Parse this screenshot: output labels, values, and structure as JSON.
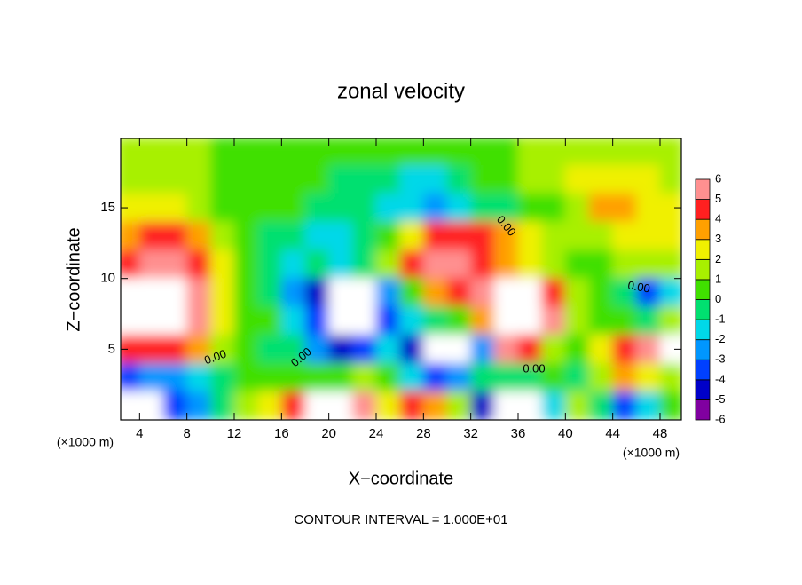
{
  "chart_data": {
    "type": "heatmap",
    "title": "zonal velocity",
    "x_label": "X−coordinate",
    "y_label": "Z−coordinate",
    "x_unit": "(×1000 m)",
    "y_unit": "(×1000 m)",
    "footnote": "CONTOUR INTERVAL = 1.000E+01",
    "annotations": [
      "0.00",
      "0.00",
      "0.00",
      "0.00",
      "0.00"
    ],
    "xlim": [
      2.4,
      49.8
    ],
    "ylim": [
      0,
      19.9
    ],
    "xticks": [
      4,
      8,
      12,
      16,
      20,
      24,
      28,
      32,
      36,
      40,
      44,
      48
    ],
    "yticks": [
      5,
      10,
      15
    ],
    "x": [
      3,
      5,
      7,
      9,
      11,
      13,
      15,
      17,
      19,
      21,
      23,
      25,
      27,
      29,
      31,
      33,
      35,
      37,
      39,
      41,
      43,
      45,
      47,
      49
    ],
    "y": [
      19,
      17,
      15,
      13,
      11,
      9,
      7,
      5,
      3,
      1
    ],
    "z": [
      [
        1,
        1,
        1,
        1,
        0.5,
        0.5,
        0.5,
        0.5,
        0.5,
        0.5,
        0.5,
        0.5,
        0.5,
        0.5,
        0.5,
        0.5,
        0.5,
        1,
        1,
        1.5,
        1.5,
        1.5,
        1,
        1
      ],
      [
        1.5,
        1.5,
        1.5,
        1,
        0.5,
        0.5,
        0.5,
        0.5,
        0.5,
        -0.5,
        -0.5,
        -1,
        -1.5,
        -1.5,
        -0.5,
        0.5,
        0.5,
        1,
        1,
        2,
        2.5,
        2.5,
        2,
        1.5
      ],
      [
        2,
        2.5,
        2.5,
        1.5,
        0.5,
        0.5,
        0.5,
        0,
        -0.5,
        -0.5,
        -1,
        -1.5,
        -2,
        -2.5,
        -2,
        -1,
        -0.5,
        0.5,
        0.5,
        1.5,
        3,
        3,
        2.5,
        2
      ],
      [
        3,
        4,
        4.5,
        3.5,
        1.5,
        0.5,
        -0.5,
        -1,
        -1.5,
        -1.5,
        -1,
        0,
        2,
        4.5,
        4.5,
        4,
        3,
        2,
        1,
        1,
        1.5,
        2.5,
        2.5,
        2
      ],
      [
        4.5,
        5.5,
        5.5,
        4.5,
        2,
        0.5,
        -1,
        -1.5,
        -1,
        -1.5,
        -0.5,
        1,
        4,
        5,
        5,
        4,
        3,
        2,
        1,
        0,
        0.5,
        1,
        1.5,
        1
      ],
      [
        7,
        7,
        7,
        5,
        2,
        0.5,
        -1,
        -3,
        -5,
        7,
        7,
        -3,
        0.5,
        3,
        4.5,
        5,
        7,
        7,
        4,
        1,
        0.5,
        -1,
        -4,
        -2
      ],
      [
        7,
        7,
        7,
        5.5,
        2,
        0.5,
        0,
        -2,
        -4,
        7,
        7,
        -4,
        -2,
        -1,
        0,
        3,
        7,
        7,
        5,
        1,
        0.5,
        0,
        -1,
        1
      ],
      [
        4,
        4.5,
        4,
        3,
        1.5,
        0.5,
        -1,
        -0.5,
        -3,
        -5,
        -4,
        -2,
        -5,
        7,
        7,
        -3,
        5,
        4,
        1,
        0.5,
        2,
        4,
        5,
        7
      ],
      [
        -4,
        -3,
        -3,
        -2,
        -0.5,
        0.5,
        0.5,
        0.5,
        0.5,
        0,
        1,
        0.5,
        -1.5,
        -4,
        -3,
        -1,
        -1,
        -0.5,
        0,
        -0.5,
        1,
        3,
        2,
        1
      ],
      [
        7,
        7,
        -4,
        -3,
        -1,
        1,
        2,
        4,
        7,
        7,
        5,
        2,
        4,
        3,
        1,
        -5,
        7,
        7,
        -2,
        1,
        -1,
        -4,
        -2,
        0.5
      ]
    ],
    "colorbar": {
      "ticks": [
        -6,
        -5,
        -4,
        -3,
        -2,
        -1,
        0,
        1,
        2,
        3,
        4,
        5,
        6
      ],
      "colors": [
        "#8000a0",
        "#0000c8",
        "#0040ff",
        "#0096ff",
        "#00d8e8",
        "#00e070",
        "#40e000",
        "#a8f000",
        "#f0f000",
        "#ffa000",
        "#ff2020",
        "#ff9090"
      ],
      "out_of_range_color": "#ffffff"
    }
  }
}
